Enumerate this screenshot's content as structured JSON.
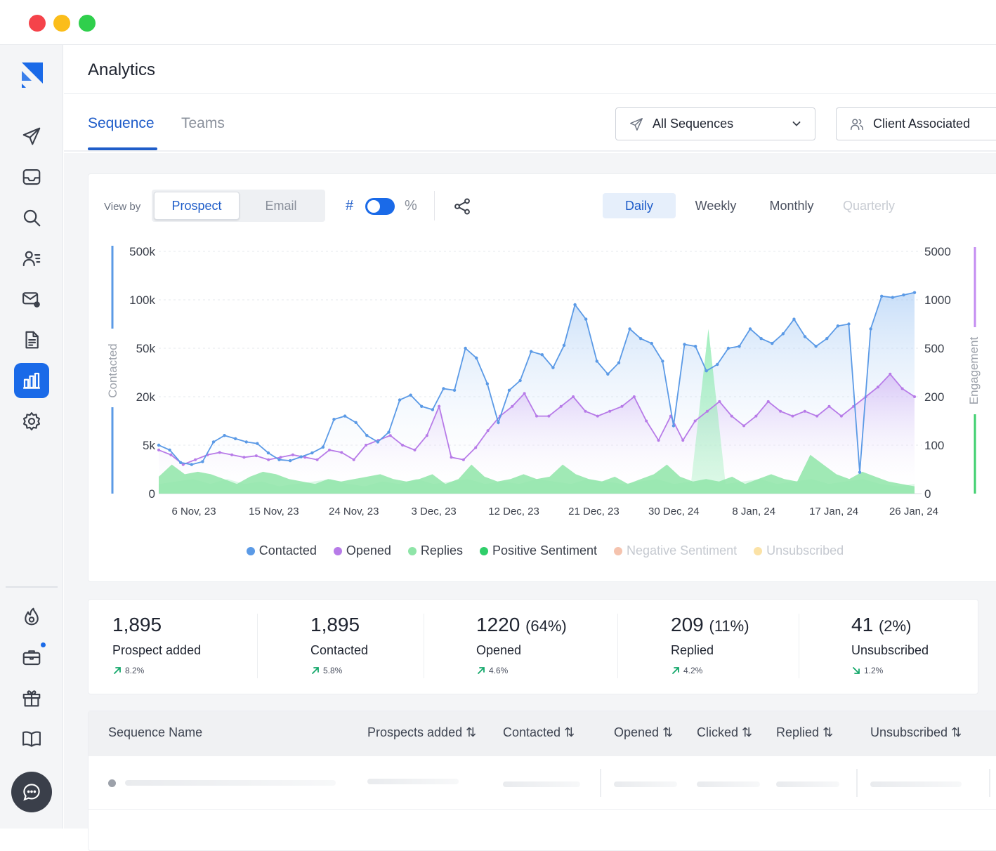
{
  "page": {
    "title": "Analytics"
  },
  "tabs": [
    {
      "label": "Sequence",
      "active": true
    },
    {
      "label": "Teams",
      "active": false
    }
  ],
  "filters": {
    "sequence_select": "All Sequences",
    "client_select": "Client Associated"
  },
  "controls": {
    "view_by_label": "View by",
    "view_by_options": [
      "Prospect",
      "Email"
    ],
    "view_by_selected": "Prospect",
    "count_symbol": "#",
    "percent_symbol": "%",
    "toggle_on": true,
    "periods": [
      "Daily",
      "Weekly",
      "Monthly",
      "Quarterly"
    ],
    "period_selected": "Daily"
  },
  "chart_data": {
    "type": "line",
    "title": "",
    "y_left_label": "Contacted",
    "y_right_label": "Engagement",
    "y_left_ticks": [
      "0",
      "5k",
      "20k",
      "50k",
      "100k",
      "500k"
    ],
    "y_right_ticks": [
      "0",
      "100",
      "200",
      "500",
      "1000",
      "5000"
    ],
    "x_tick_labels": [
      "6 Nov, 23",
      "15 Nov, 23",
      "24 Nov, 23",
      "3 Dec, 23",
      "12 Dec, 23",
      "21 Dec, 23",
      "30 Dec, 24",
      "8 Jan, 24",
      "17 Jan, 24",
      "26 Jan, 24"
    ],
    "legend_placement": "bottom",
    "series": [
      {
        "name": "Contacted",
        "color": "#5b9ae6",
        "axis": "left",
        "values": [
          5000,
          4500,
          3200,
          3000,
          3300,
          6000,
          8000,
          7000,
          6000,
          5500,
          4200,
          3500,
          3400,
          3800,
          4200,
          4800,
          13000,
          14000,
          12000,
          8000,
          6000,
          9000,
          19000,
          21000,
          17000,
          16000,
          25000,
          24000,
          50000,
          44000,
          28000,
          12000,
          24000,
          30000,
          48000,
          46000,
          38000,
          53000,
          95000,
          80000,
          42000,
          34000,
          41000,
          70000,
          60000,
          55000,
          42000,
          11000,
          54000,
          52000,
          36000,
          40000,
          50000,
          52000,
          70000,
          60000,
          55000,
          65000,
          80000,
          62000,
          52000,
          60000,
          73000,
          75000,
          2200,
          70000,
          130000,
          120000,
          140000,
          160000
        ]
      },
      {
        "name": "Opened",
        "color": "#b77be8",
        "axis": "right",
        "values": [
          90,
          80,
          60,
          70,
          80,
          85,
          80,
          75,
          78,
          70,
          75,
          80,
          75,
          70,
          90,
          85,
          70,
          100,
          110,
          120,
          100,
          90,
          120,
          180,
          75,
          70,
          95,
          130,
          160,
          180,
          220,
          160,
          160,
          180,
          200,
          170,
          160,
          170,
          180,
          200,
          150,
          110,
          160,
          110,
          150,
          170,
          190,
          160,
          140,
          160,
          190,
          170,
          160,
          170,
          160,
          180,
          160,
          180,
          200,
          260,
          340,
          250,
          200
        ]
      },
      {
        "name": "Replies",
        "color": "#8fe5a8",
        "axis": "right",
        "values": [
          35,
          60,
          40,
          45,
          40,
          30,
          20,
          35,
          45,
          40,
          30,
          25,
          20,
          30,
          25,
          30,
          35,
          40,
          30,
          25,
          30,
          40,
          20,
          30,
          60,
          35,
          25,
          30,
          40,
          30,
          35,
          60,
          40,
          30,
          25,
          35,
          20,
          30,
          40,
          60,
          35,
          25,
          30,
          25,
          35,
          20,
          30,
          40,
          30,
          25,
          80,
          60,
          40,
          30,
          45,
          35,
          25,
          20,
          15
        ]
      },
      {
        "name": "Positive Sentiment",
        "color": "#3ecf6e",
        "axis": "right",
        "values": [
          20,
          25,
          30,
          20,
          30,
          20,
          25,
          15,
          20,
          25,
          30,
          20,
          15,
          25,
          20,
          30,
          20,
          25,
          30,
          20,
          25,
          20,
          30,
          25,
          20,
          30,
          25,
          20,
          25,
          30,
          20,
          25,
          700,
          20,
          25,
          30,
          20,
          25,
          30,
          20,
          25,
          30,
          20,
          15,
          20
        ]
      },
      {
        "name": "Negative Sentiment",
        "color": "#f5c3ae",
        "axis": "right",
        "values": []
      },
      {
        "name": "Unsubscribed",
        "color": "#fbe2a6",
        "axis": "right",
        "values": []
      }
    ]
  },
  "legend": [
    {
      "label": "Contacted",
      "color": "#5b9ae6",
      "muted": false
    },
    {
      "label": "Opened",
      "color": "#b77be8",
      "muted": false
    },
    {
      "label": "Replies",
      "color": "#8fe5a8",
      "muted": false
    },
    {
      "label": "Positive Sentiment",
      "color": "#2fce6a",
      "muted": false
    },
    {
      "label": "Negative Sentiment",
      "color": "#f5c3ae",
      "muted": true
    },
    {
      "label": "Unsubscribed",
      "color": "#fbe2a6",
      "muted": true
    }
  ],
  "stats": [
    {
      "value": "1,895",
      "pct": "",
      "label": "Prospect added",
      "delta": "8.2%",
      "trend": "up"
    },
    {
      "value": "1,895",
      "pct": "",
      "label": "Contacted",
      "delta": "5.8%",
      "trend": "up"
    },
    {
      "value": "1220",
      "pct": "(64%)",
      "label": "Opened",
      "delta": "4.6%",
      "trend": "up"
    },
    {
      "value": "209",
      "pct": "(11%)",
      "label": "Replied",
      "delta": "4.2%",
      "trend": "up"
    },
    {
      "value": "41",
      "pct": "(2%)",
      "label": "Unsubscribed",
      "delta": "1.2%",
      "trend": "down"
    }
  ],
  "table": {
    "columns": [
      "Sequence Name",
      "Prospects added",
      "Contacted",
      "Opened",
      "Clicked",
      "Replied",
      "Unsubscribed"
    ],
    "sort_icon": "sort-icon"
  },
  "colors": {
    "accent": "#1f5dc9",
    "brand": "#1a6ae8",
    "positive": "#14a86b"
  }
}
